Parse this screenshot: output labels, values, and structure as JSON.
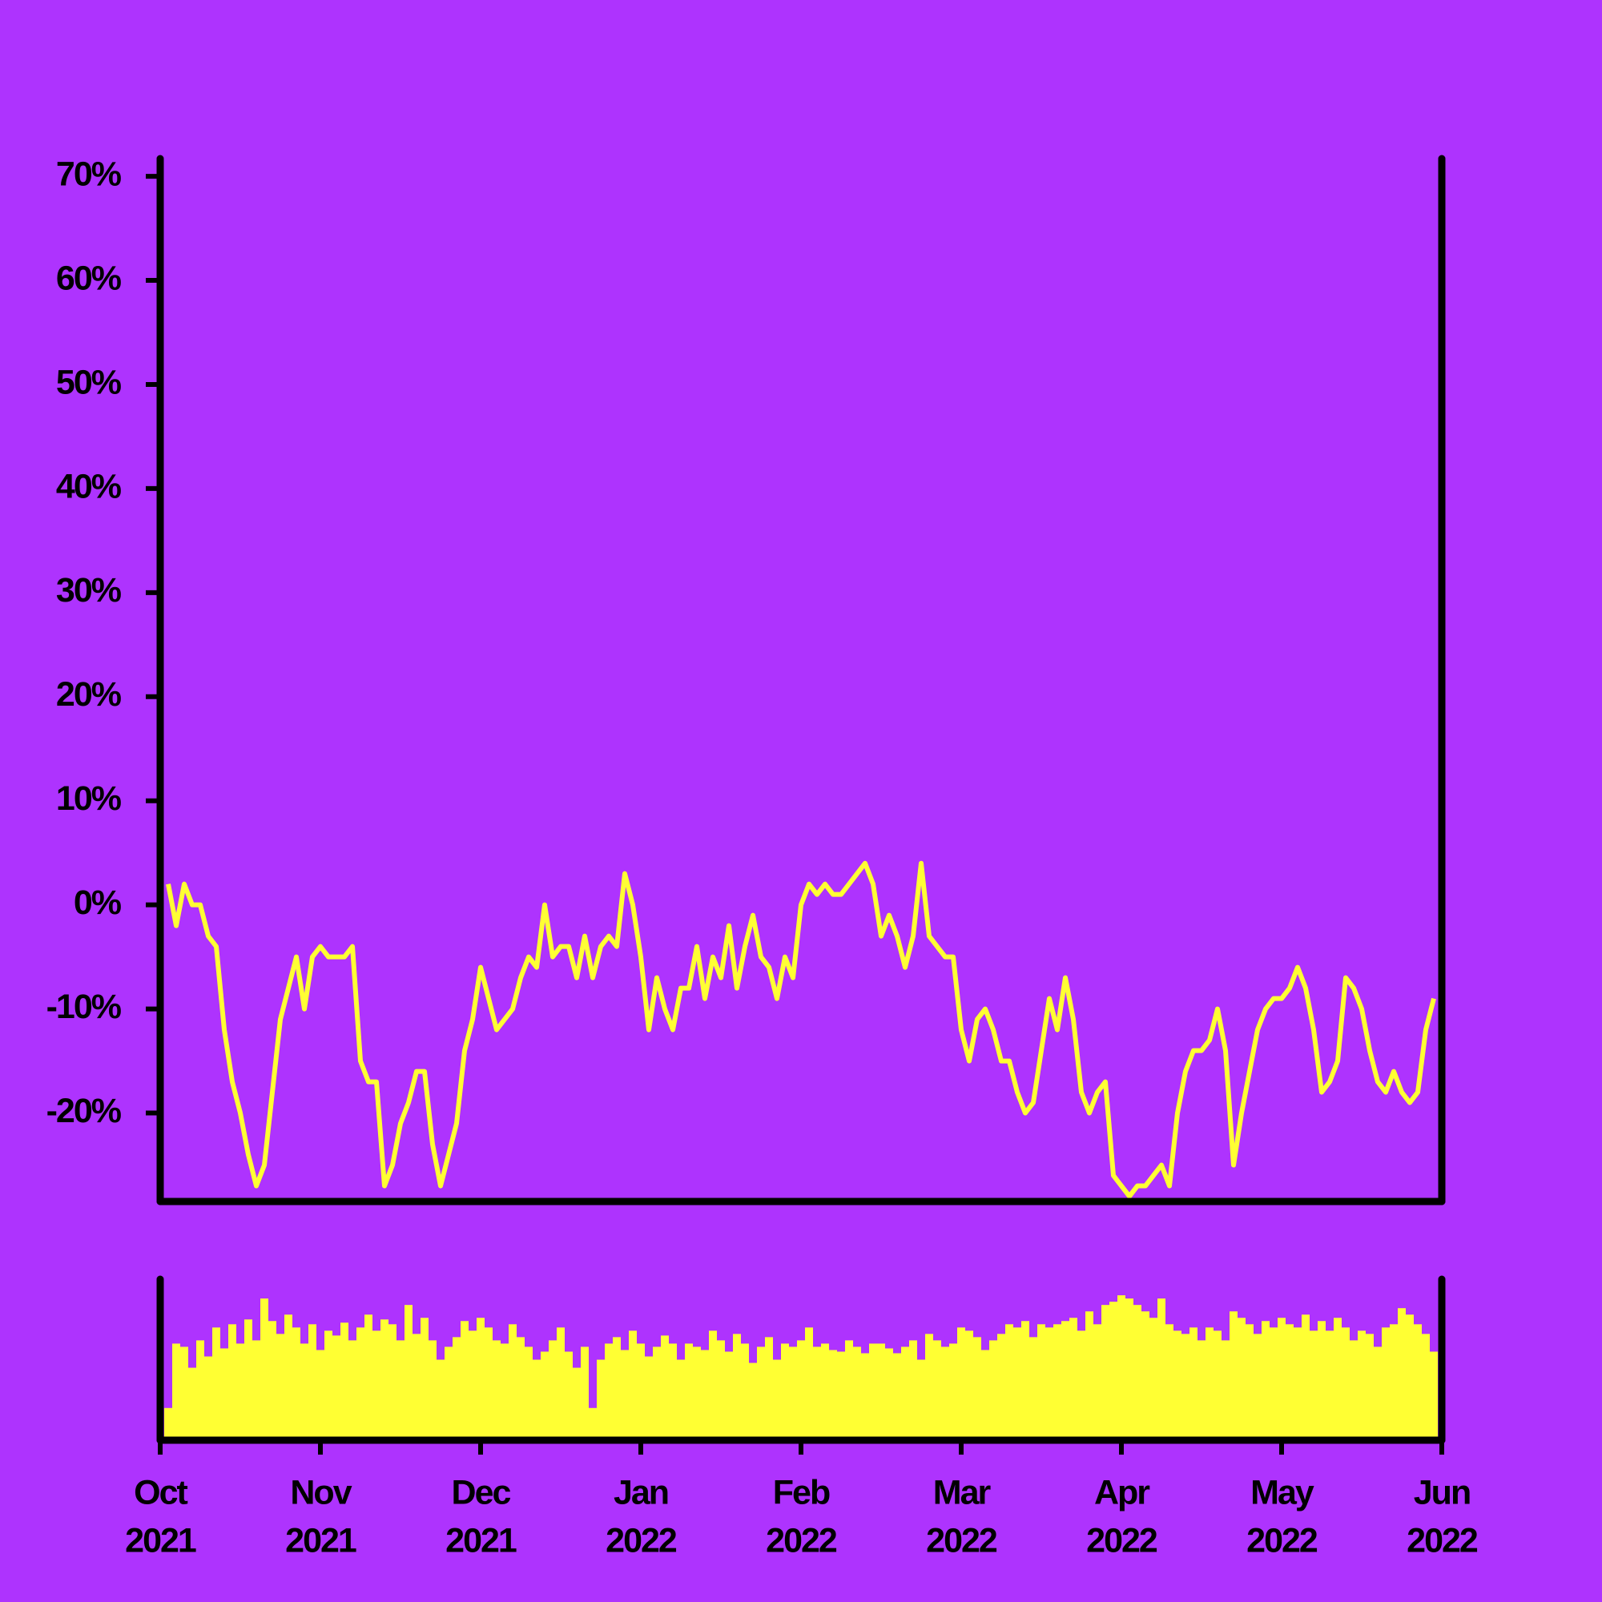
{
  "chart_data": {
    "type": "line",
    "background": "#ae33fe",
    "xlim": [
      0,
      8
    ],
    "xticks": [
      {
        "value": 0,
        "label": [
          "Oct",
          "2021"
        ]
      },
      {
        "value": 1,
        "label": [
          "Nov",
          "2021"
        ]
      },
      {
        "value": 2,
        "label": [
          "Dec",
          "2021"
        ]
      },
      {
        "value": 3,
        "label": [
          "Jan",
          "2022"
        ]
      },
      {
        "value": 4,
        "label": [
          "Feb",
          "2022"
        ]
      },
      {
        "value": 5,
        "label": [
          "Mar",
          "2022"
        ]
      },
      {
        "value": 6,
        "label": [
          "Apr",
          "2022"
        ]
      },
      {
        "value": 7,
        "label": [
          "May",
          "2022"
        ]
      },
      {
        "value": 8,
        "label": [
          "Jun",
          "2022"
        ]
      }
    ],
    "ylim": [
      -28.5,
      71.7
    ],
    "yticks": [
      {
        "value": -20,
        "label": "-20%"
      },
      {
        "value": -10,
        "label": "-10%"
      },
      {
        "value": 0,
        "label": "0%"
      },
      {
        "value": 10,
        "label": "10%"
      },
      {
        "value": 20,
        "label": "20%"
      },
      {
        "value": 30,
        "label": "30%"
      },
      {
        "value": 40,
        "label": "40%"
      },
      {
        "value": 50,
        "label": "50%"
      },
      {
        "value": 60,
        "label": "60%"
      },
      {
        "value": 70,
        "label": "70%"
      }
    ],
    "x": [
      0.05,
      0.1,
      0.15,
      0.2,
      0.25,
      0.3,
      0.35,
      0.4,
      0.45,
      0.5,
      0.55,
      0.6,
      0.65,
      0.7,
      0.75,
      0.8,
      0.85,
      0.9,
      0.95,
      1,
      1.05,
      1.1,
      1.15,
      1.2,
      1.25,
      1.3,
      1.35,
      1.4,
      1.45,
      1.5,
      1.55,
      1.6,
      1.65,
      1.7,
      1.75,
      1.8,
      1.85,
      1.9,
      1.95,
      2,
      2.05,
      2.1,
      2.15,
      2.2,
      2.25,
      2.3,
      2.35,
      2.4,
      2.45,
      2.5,
      2.55,
      2.6,
      2.65,
      2.7,
      2.75,
      2.8,
      2.85,
      2.9,
      2.95,
      3,
      3.05,
      3.1,
      3.15,
      3.2,
      3.25,
      3.3,
      3.35,
      3.4,
      3.45,
      3.5,
      3.55,
      3.6,
      3.65,
      3.7,
      3.75,
      3.8,
      3.85,
      3.9,
      3.95,
      4,
      4.05,
      4.1,
      4.15,
      4.2,
      4.25,
      4.3,
      4.35,
      4.4,
      4.45,
      4.5,
      4.55,
      4.6,
      4.65,
      4.7,
      4.75,
      4.8,
      4.85,
      4.9,
      4.95,
      5,
      5.05,
      5.1,
      5.15,
      5.2,
      5.25,
      5.3,
      5.35,
      5.4,
      5.45,
      5.5,
      5.55,
      5.6,
      5.65,
      5.7,
      5.75,
      5.8,
      5.85,
      5.9,
      5.95,
      6,
      6.05,
      6.1,
      6.15,
      6.2,
      6.25,
      6.3,
      6.35,
      6.4,
      6.45,
      6.5,
      6.55,
      6.6,
      6.65,
      6.7,
      6.75,
      6.8,
      6.85,
      6.9,
      6.95,
      7,
      7.05,
      7.1,
      7.15,
      7.2,
      7.25,
      7.3,
      7.35,
      7.4,
      7.45,
      7.5,
      7.55,
      7.6,
      7.65,
      7.7,
      7.75,
      7.8,
      7.85,
      7.9,
      7.95
    ],
    "series": [
      {
        "color": "#ffff33",
        "values": [
          2,
          -2,
          2,
          0,
          0,
          -3,
          -4,
          -12,
          -17,
          -20,
          -24,
          -27,
          -25,
          -18,
          -11,
          -8,
          -5,
          -10,
          -5,
          -4,
          -5,
          -5,
          -5,
          -4,
          -15,
          -17,
          -17,
          -27,
          -25,
          -21,
          -19,
          -16,
          -16,
          -23,
          -27,
          -24,
          -21,
          -14,
          -11,
          -6,
          -9,
          -12,
          -11,
          -10,
          -7,
          -5,
          -6,
          0,
          -5,
          -4,
          -4,
          -7,
          -3,
          -7,
          -4,
          -3,
          -4,
          3,
          0,
          -5,
          -12,
          -7,
          -10,
          -12,
          -8,
          -8,
          -4,
          -9,
          -5,
          -7,
          -2,
          -8,
          -4,
          -1,
          -5,
          -6,
          -9,
          -5,
          -7,
          0,
          2,
          1,
          2,
          1,
          1,
          2,
          3,
          4,
          2,
          -3,
          -1,
          -3,
          -6,
          -3,
          4,
          -3,
          -4,
          -5,
          -5,
          -12,
          -15,
          -11,
          -10,
          -12,
          -15,
          -15,
          -18,
          -20,
          -19,
          -14,
          -9,
          -12,
          -7,
          -11,
          -18,
          -20,
          -18,
          -17,
          -26,
          -27,
          -28,
          -27,
          -27,
          -26,
          -25,
          -27,
          -20,
          -16,
          -14,
          -14,
          -13,
          -10,
          -14,
          -25,
          -20,
          -16,
          -12,
          -10,
          -9,
          -9,
          -8,
          -6,
          -8,
          -12,
          -18,
          -17,
          -15,
          -7,
          -8,
          -10,
          -14,
          -17,
          -18,
          -16,
          -18,
          -19,
          -18,
          -12,
          -9
        ]
      },
      {
        "color": "#ffff33",
        "axis": "volume",
        "values": [
          20,
          60,
          58,
          45,
          62,
          52,
          70,
          57,
          72,
          60,
          75,
          62,
          88,
          74,
          66,
          78,
          70,
          60,
          72,
          56,
          68,
          65,
          73,
          62,
          70,
          78,
          68,
          75,
          72,
          62,
          84,
          66,
          76,
          62,
          50,
          58,
          64,
          74,
          68,
          76,
          70,
          62,
          60,
          72,
          64,
          58,
          50,
          55,
          62,
          70,
          55,
          45,
          58,
          20,
          50,
          60,
          64,
          56,
          68,
          60,
          52,
          58,
          65,
          60,
          50,
          60,
          58,
          56,
          68,
          62,
          55,
          66,
          60,
          48,
          58,
          64,
          50,
          60,
          58,
          62,
          70,
          58,
          60,
          56,
          55,
          62,
          58,
          54,
          60,
          60,
          57,
          54,
          58,
          62,
          50,
          66,
          62,
          58,
          60,
          70,
          68,
          64,
          56,
          62,
          66,
          72,
          70,
          74,
          64,
          72,
          70,
          72,
          74,
          76,
          68,
          80,
          72,
          84,
          86,
          90,
          88,
          84,
          80,
          76,
          88,
          72,
          68,
          66,
          70,
          62,
          70,
          68,
          62,
          80,
          76,
          72,
          66,
          74,
          70,
          76,
          72,
          70,
          78,
          68,
          74,
          68,
          76,
          70,
          62,
          68,
          66,
          58,
          70,
          72,
          82,
          78,
          72,
          66,
          55
        ]
      }
    ],
    "volume_lim": [
      0,
      100
    ]
  }
}
